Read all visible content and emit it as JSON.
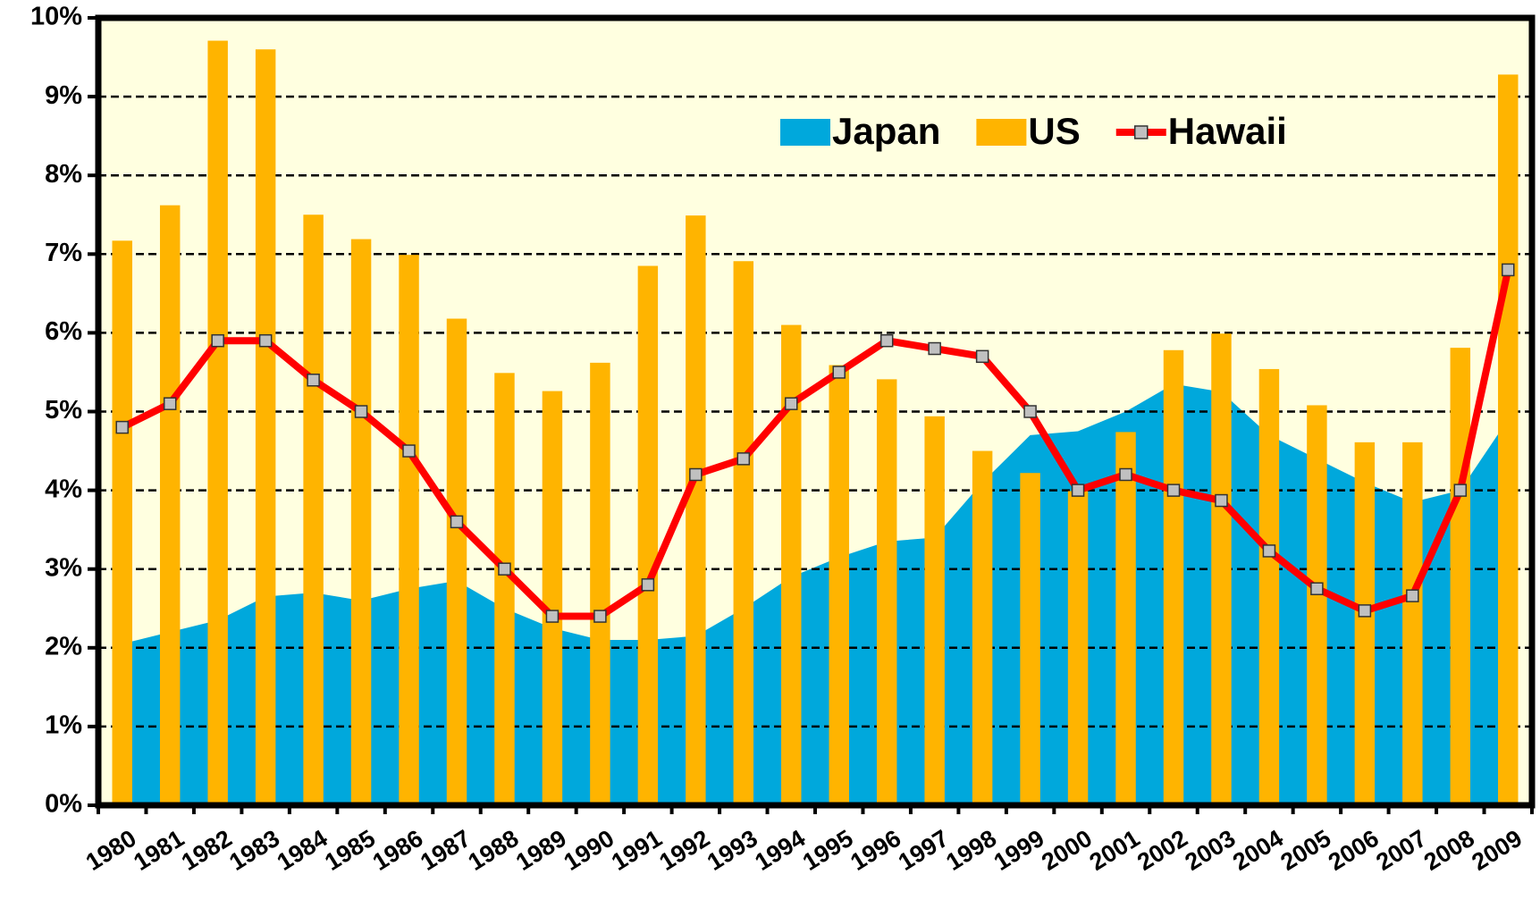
{
  "chart_data": {
    "type": "combo",
    "categories": [
      "1980",
      "1981",
      "1982",
      "1983",
      "1984",
      "1985",
      "1986",
      "1987",
      "1988",
      "1989",
      "1990",
      "1991",
      "1992",
      "1993",
      "1994",
      "1995",
      "1996",
      "1997",
      "1998",
      "1999",
      "2000",
      "2001",
      "2002",
      "2003",
      "2004",
      "2005",
      "2006",
      "2007",
      "2008",
      "2009"
    ],
    "series": [
      {
        "name": "Japan",
        "type": "area",
        "color": "#00a8dc",
        "values": [
          2.05,
          2.2,
          2.35,
          2.65,
          2.7,
          2.6,
          2.75,
          2.85,
          2.5,
          2.25,
          2.1,
          2.1,
          2.15,
          2.5,
          2.9,
          3.15,
          3.35,
          3.4,
          4.1,
          4.7,
          4.75,
          5.0,
          5.35,
          5.25,
          4.7,
          4.4,
          4.1,
          3.85,
          4.0,
          4.9
        ]
      },
      {
        "name": "US",
        "type": "bar",
        "color": "#ffb400",
        "values": [
          7.17,
          7.62,
          9.71,
          9.6,
          7.5,
          7.19,
          6.99,
          6.18,
          5.49,
          5.26,
          5.62,
          6.85,
          7.49,
          6.91,
          6.1,
          5.59,
          5.41,
          4.94,
          4.5,
          4.22,
          3.99,
          4.74,
          5.78,
          5.99,
          5.54,
          5.08,
          4.61,
          4.61,
          5.81,
          9.28
        ]
      },
      {
        "name": "Hawaii",
        "type": "line",
        "color": "#ff0000",
        "values": [
          4.8,
          5.1,
          5.9,
          5.9,
          5.4,
          5.0,
          4.5,
          3.6,
          3.0,
          2.4,
          2.4,
          2.8,
          4.2,
          4.4,
          5.1,
          5.5,
          5.9,
          5.8,
          5.7,
          5.0,
          4.0,
          4.2,
          4.0,
          3.87,
          3.23,
          2.75,
          2.47,
          2.66,
          4.0,
          6.8
        ]
      }
    ],
    "ylim": [
      0,
      10
    ],
    "yticks": [
      {
        "value": 0,
        "label": "0%"
      },
      {
        "value": 1,
        "label": "1%"
      },
      {
        "value": 2,
        "label": "2%"
      },
      {
        "value": 3,
        "label": "3%"
      },
      {
        "value": 4,
        "label": "4%"
      },
      {
        "value": 5,
        "label": "5%"
      },
      {
        "value": 6,
        "label": "6%"
      },
      {
        "value": 7,
        "label": "7%"
      },
      {
        "value": 8,
        "label": "8%"
      },
      {
        "value": 9,
        "label": "9%"
      },
      {
        "value": 10,
        "label": "10%"
      }
    ],
    "grid": true,
    "legend": "upper center"
  }
}
